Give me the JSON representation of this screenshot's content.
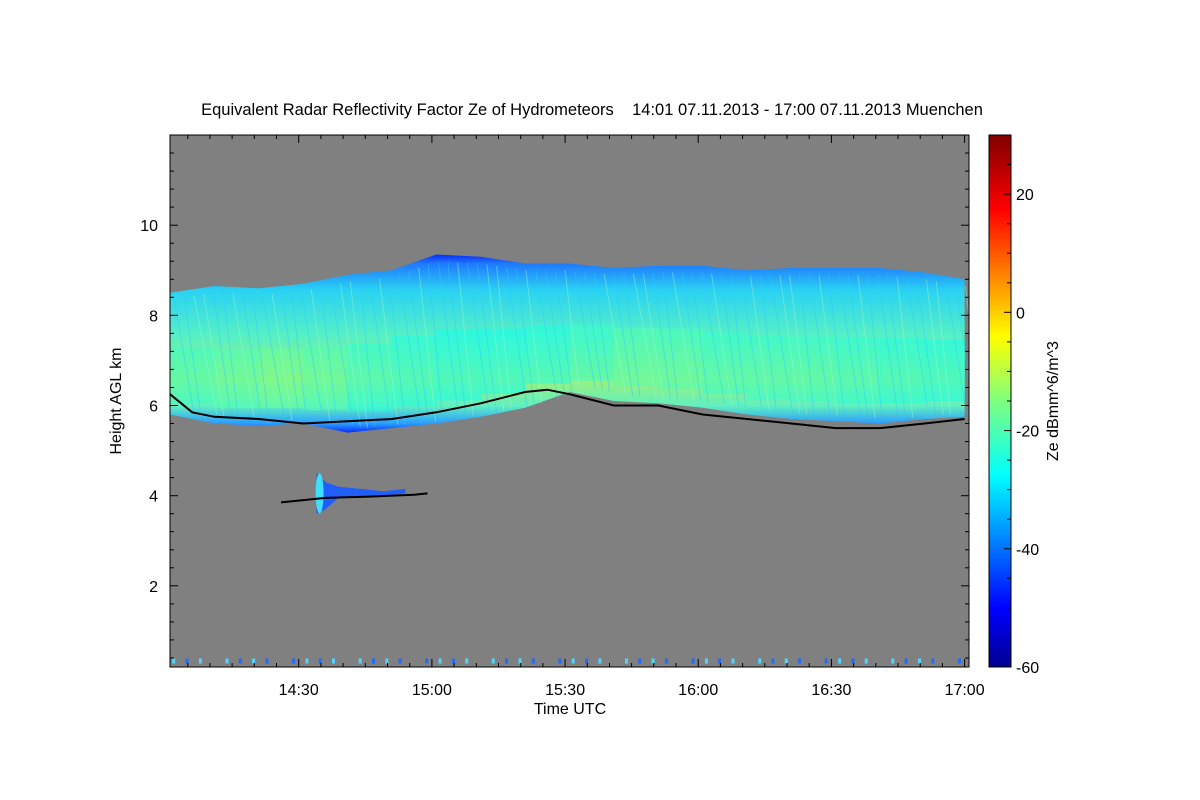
{
  "chart_data": {
    "type": "heatmap",
    "title": "Equivalent Radar Reflectivity Factor Ze of Hydrometeors    14:01 07.11.2013 - 17:00 07.11.2013 Muenchen",
    "xlabel": "Time UTC",
    "ylabel": "Height AGL km",
    "xlim": [
      "14:01",
      "17:01"
    ],
    "ylim": [
      0.2,
      12.0
    ],
    "x_ticks": [
      "14:30",
      "15:00",
      "15:30",
      "16:00",
      "16:30",
      "17:00"
    ],
    "y_ticks": [
      2,
      4,
      6,
      8,
      10
    ],
    "background_color": "#808080",
    "colorbar": {
      "label": "Ze dBmm^6/m^3",
      "range": [
        -60,
        30
      ],
      "ticks": [
        -60,
        -40,
        -20,
        0,
        20
      ],
      "colormap": "jet"
    },
    "upper_cloud_layer": {
      "time_minutes": [
        1,
        11,
        21,
        31,
        41,
        51,
        61,
        71,
        81,
        91,
        101,
        111,
        121,
        131,
        141,
        151,
        161,
        171,
        180
      ],
      "base_km": [
        5.8,
        5.6,
        5.55,
        5.6,
        5.4,
        5.5,
        5.6,
        5.75,
        5.95,
        6.3,
        6.1,
        6.05,
        5.95,
        5.8,
        5.7,
        5.65,
        5.6,
        5.7,
        5.75
      ],
      "top_km": [
        8.5,
        8.65,
        8.6,
        8.7,
        8.9,
        9.0,
        9.35,
        9.3,
        9.15,
        9.15,
        9.05,
        9.1,
        9.1,
        9.0,
        9.05,
        9.05,
        9.05,
        8.95,
        8.8
      ],
      "peak_ze_dbz": [
        -22,
        -20,
        -18,
        -16,
        -22,
        -23,
        -24,
        -25,
        -24,
        -23,
        -20,
        -18,
        -21,
        -22,
        -21,
        -22,
        -23,
        -24,
        -25
      ]
    },
    "lower_echo": {
      "time_minutes": [
        34,
        36,
        39,
        44,
        49,
        54
      ],
      "base_km": [
        3.6,
        3.7,
        3.95,
        3.95,
        4.0,
        4.05
      ],
      "top_km": [
        4.5,
        4.3,
        4.2,
        4.15,
        4.1,
        4.15
      ]
    },
    "ceilometer_cloud_base": {
      "time_minutes": [
        1,
        6,
        11,
        21,
        31,
        41,
        51,
        61,
        71,
        81,
        86,
        91,
        101,
        111,
        121,
        131,
        141,
        151,
        161,
        171,
        180
      ],
      "height_km": [
        6.25,
        5.85,
        5.75,
        5.7,
        5.6,
        5.65,
        5.7,
        5.85,
        6.05,
        6.3,
        6.35,
        6.25,
        6.0,
        6.0,
        5.8,
        5.7,
        5.6,
        5.5,
        5.5,
        5.6,
        5.7
      ],
      "low_segment_minutes": [
        26,
        36,
        46,
        56,
        59
      ],
      "low_segment_km": [
        3.85,
        3.95,
        3.98,
        4.02,
        4.05
      ]
    },
    "near_ground_clutter_km": 0.3
  }
}
